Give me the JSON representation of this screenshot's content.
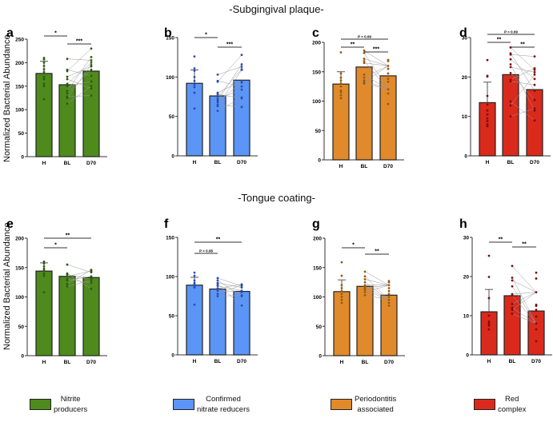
{
  "titles": {
    "top": "-Subgingival plaque-",
    "bottom": "-Tongue coating-"
  },
  "ylabel": "Normalized Bacterial Abundance",
  "legend": [
    {
      "line1": "Nitrite",
      "line2": "producers",
      "color": "#4f8a1d"
    },
    {
      "line1": "Confirmed",
      "line2": "nitrate reducers",
      "color": "#5b95f6"
    },
    {
      "line1": "Periodontitis",
      "line2": "associated",
      "color": "#e08a2c"
    },
    {
      "line1": "Red",
      "line2": "complex",
      "color": "#da2a1c"
    }
  ],
  "chart_data": [
    {
      "type": "bar",
      "panel": "a",
      "section": "Subgingival plaque",
      "group": "Nitrite producers",
      "categories": [
        "H",
        "BL",
        "D70"
      ],
      "ylim": [
        0,
        250
      ],
      "ticks": [
        "0",
        "50",
        "100",
        "150",
        "200",
        "250"
      ],
      "means": [
        177,
        153,
        182
      ],
      "h_sd_top": 203,
      "points": {
        "H": [
          210,
          207,
          200,
          193,
          186,
          180,
          170,
          165,
          155,
          150,
          122
        ],
        "BL": [
          208,
          185,
          182,
          170,
          165,
          155,
          150,
          140,
          135,
          128,
          125,
          113
        ],
        "D70": [
          230,
          212,
          205,
          200,
          195,
          192,
          185,
          172,
          160,
          150,
          145,
          130
        ]
      },
      "brackets": [
        {
          "from": "H",
          "to": "BL",
          "label": "*",
          "level": 3
        },
        {
          "from": "BL",
          "to": "D70",
          "label": "***",
          "level": 1
        }
      ]
    },
    {
      "type": "bar",
      "panel": "b",
      "section": "Subgingival plaque",
      "group": "Confirmed nitrate reducers",
      "categories": [
        "H",
        "BL",
        "D70"
      ],
      "ylim": [
        0,
        150
      ],
      "ticks": [
        "0",
        "50",
        "100",
        "150"
      ],
      "means": [
        92,
        76,
        96
      ],
      "h_sd_top": 109,
      "points": {
        "H": [
          126,
          111,
          108,
          100,
          95,
          90,
          87,
          80,
          60
        ],
        "BL": [
          103,
          95,
          94,
          80,
          78,
          75,
          72,
          70,
          68,
          65,
          63,
          57
        ],
        "D70": [
          128,
          116,
          113,
          110,
          109,
          95,
          93,
          88,
          84,
          74,
          73,
          62
        ]
      },
      "brackets": [
        {
          "from": "H",
          "to": "BL",
          "label": "*",
          "level": 2
        },
        {
          "from": "BL",
          "to": "D70",
          "label": "***",
          "level": 0
        }
      ]
    },
    {
      "type": "bar",
      "panel": "c",
      "section": "Subgingival plaque",
      "group": "Periodontitis associated",
      "categories": [
        "H",
        "BL",
        "D70"
      ],
      "ylim": [
        0,
        200
      ],
      "ticks": [
        "0",
        "50",
        "100",
        "150",
        "200"
      ],
      "means": [
        129,
        158,
        143
      ],
      "h_sd_top": 150,
      "points": {
        "H": [
          183,
          147,
          140,
          135,
          130,
          125,
          118,
          115,
          110,
          105
        ],
        "BL": [
          186,
          182,
          172,
          168,
          165,
          145,
          140,
          135,
          132,
          130
        ],
        "D70": [
          170,
          168,
          160,
          155,
          147,
          138,
          133,
          120,
          113,
          95
        ]
      },
      "brackets": [
        {
          "from": "H",
          "to": "D70",
          "label": "P = 0.09",
          "level": 3
        },
        {
          "from": "H",
          "to": "BL",
          "label": "**",
          "level": 1
        },
        {
          "from": "BL",
          "to": "D70",
          "label": "***",
          "level": 0
        }
      ]
    },
    {
      "type": "bar",
      "panel": "d",
      "section": "Subgingival plaque",
      "group": "Red complex",
      "categories": [
        "H",
        "BL",
        "D70"
      ],
      "ylim": [
        0,
        30
      ],
      "ticks": [
        "0",
        "10",
        "20",
        "30"
      ],
      "means": [
        13.5,
        20.6,
        16.8
      ],
      "h_sd_top": 18.7,
      "points": {
        "H": [
          24.3,
          20.3,
          20.1,
          15.2,
          13,
          11.5,
          10.5,
          9.5,
          8.8,
          8,
          7.5
        ],
        "BL": [
          27.5,
          26,
          25.7,
          24.5,
          23.2,
          22.5,
          21,
          19.3,
          18.9,
          13.8,
          12.8,
          10
        ],
        "D70": [
          25.2,
          22.2,
          21.8,
          21.2,
          20.6,
          19.5,
          18,
          16.5,
          14.2,
          12,
          11.5,
          9
        ]
      },
      "brackets": [
        {
          "from": "H",
          "to": "D70",
          "label": "P = 0.09",
          "level": 3
        },
        {
          "from": "H",
          "to": "BL",
          "label": "**",
          "level": 1
        },
        {
          "from": "BL",
          "to": "D70",
          "label": "**",
          "level": 0
        }
      ]
    },
    {
      "type": "bar",
      "panel": "e",
      "section": "Tongue coating",
      "group": "Nitrite producers",
      "categories": [
        "H",
        "BL",
        "D70"
      ],
      "ylim": [
        0,
        200
      ],
      "ticks": [
        "0",
        "50",
        "100",
        "150",
        "200"
      ],
      "means": [
        144,
        135,
        133
      ],
      "h_sd_top": 158,
      "points": {
        "H": [
          160,
          157,
          152,
          148,
          145,
          140,
          136,
          108
        ],
        "BL": [
          155,
          140,
          138,
          135,
          130,
          128,
          122,
          118
        ],
        "D70": [
          146,
          144,
          142,
          135,
          130,
          128,
          124,
          114
        ]
      },
      "brackets": [
        {
          "from": "H",
          "to": "D70",
          "label": "**",
          "level": 2
        },
        {
          "from": "H",
          "to": "BL",
          "label": "*",
          "level": 0
        }
      ]
    },
    {
      "type": "bar",
      "panel": "f",
      "section": "Tongue coating",
      "group": "Confirmed nitrate reducers",
      "categories": [
        "H",
        "BL",
        "D70"
      ],
      "ylim": [
        0,
        150
      ],
      "ticks": [
        "0",
        "50",
        "100",
        "150"
      ],
      "means": [
        89,
        84,
        81
      ],
      "h_sd_top": 99,
      "points": {
        "H": [
          105,
          101,
          95,
          92,
          90,
          88,
          86,
          64
        ],
        "BL": [
          98,
          95,
          92,
          90,
          88,
          85,
          82,
          78,
          75
        ],
        "D70": [
          90,
          89,
          88,
          86,
          82,
          80,
          76,
          75,
          63
        ]
      },
      "brackets": [
        {
          "from": "H",
          "to": "D70",
          "label": "**",
          "level": 1
        },
        {
          "from": "H",
          "to": "BL",
          "label": "P = 0.08",
          "level": -1
        }
      ]
    },
    {
      "type": "bar",
      "panel": "g",
      "section": "Tongue coating",
      "group": "Periodontitis associated",
      "categories": [
        "H",
        "BL",
        "D70"
      ],
      "ylim": [
        0,
        200
      ],
      "ticks": [
        "0",
        "50",
        "100",
        "150",
        "200"
      ],
      "means": [
        109,
        118,
        103
      ],
      "h_sd_top": 129,
      "points": {
        "H": [
          159,
          136,
          120,
          115,
          110,
          105,
          100,
          95,
          90
        ],
        "BL": [
          143,
          135,
          130,
          125,
          120,
          118,
          115,
          112,
          108,
          103
        ],
        "D70": [
          127,
          125,
          120,
          115,
          110,
          105,
          100,
          95,
          90,
          85
        ]
      },
      "brackets": [
        {
          "from": "H",
          "to": "BL",
          "label": "*",
          "level": 0
        },
        {
          "from": "BL",
          "to": "D70",
          "label": "**",
          "level": -1
        }
      ]
    },
    {
      "type": "bar",
      "panel": "h",
      "section": "Tongue coating",
      "group": "Red complex",
      "categories": [
        "H",
        "BL",
        "D70"
      ],
      "ylim": [
        0,
        30
      ],
      "ticks": [
        "0",
        "10",
        "20",
        "30"
      ],
      "means": [
        11,
        15.1,
        11.2
      ],
      "h_sd_top": 16.7,
      "points": {
        "H": [
          25.3,
          19.9,
          14.5,
          10,
          8.5,
          8,
          7.5,
          6.5
        ],
        "BL": [
          22.7,
          19.7,
          19,
          17.5,
          15.5,
          15.2,
          13,
          12,
          11.5,
          10.5
        ],
        "D70": [
          21,
          19.5,
          16,
          12.8,
          12.5,
          11.5,
          9.8,
          8,
          6.5,
          3.5
        ]
      },
      "brackets": [
        {
          "from": "H",
          "to": "BL",
          "label": "**",
          "level": 1
        },
        {
          "from": "BL",
          "to": "D70",
          "label": "**",
          "level": 0
        }
      ]
    }
  ],
  "colors": {
    "fill": [
      "#4f8a1d",
      "#5b95f6",
      "#e08a2c",
      "#da2a1c"
    ],
    "dots": [
      "#2f5a0e",
      "#2a4fb0",
      "#9a5a12",
      "#7a0f0f"
    ]
  }
}
